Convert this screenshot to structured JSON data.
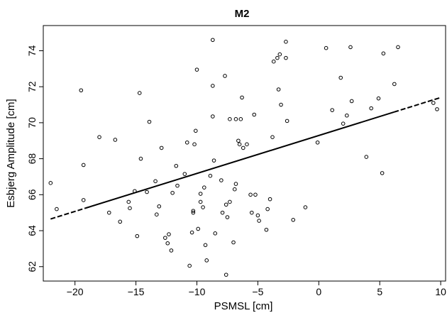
{
  "chart_data": {
    "type": "scatter",
    "title": "M2",
    "xlabel": "PSMSL [cm]",
    "ylabel": "Esbjerg Amplitude [cm]",
    "xlim": [
      -22.6,
      10.4
    ],
    "ylim": [
      61.2,
      75.4
    ],
    "x_ticks": [
      -20,
      -15,
      -10,
      -5,
      0,
      5,
      10
    ],
    "y_ticks": [
      62,
      64,
      66,
      68,
      70,
      72,
      74
    ],
    "x_tick_labels": [
      "−20",
      "−15",
      "−10",
      "−5",
      "0",
      "5",
      "10"
    ],
    "y_tick_labels": [
      "62",
      "64",
      "66",
      "68",
      "70",
      "72",
      "74"
    ],
    "grid": false,
    "legend": "none",
    "colors": {
      "points": "#000000",
      "fit_line": "#000000",
      "frame": "#000000"
    },
    "series": [
      {
        "points": [
          [
            -22.0,
            66.65
          ],
          [
            -21.5,
            65.2
          ],
          [
            -19.5,
            71.8
          ],
          [
            -19.3,
            67.65
          ],
          [
            -19.3,
            65.7
          ],
          [
            -18.0,
            69.2
          ],
          [
            -17.2,
            65.0
          ],
          [
            -16.7,
            69.05
          ],
          [
            -16.3,
            64.5
          ],
          [
            -15.6,
            65.6
          ],
          [
            -15.5,
            65.25
          ],
          [
            -15.1,
            66.2
          ],
          [
            -14.9,
            63.7
          ],
          [
            -14.7,
            71.65
          ],
          [
            -14.6,
            68.0
          ],
          [
            -14.1,
            66.15
          ],
          [
            -13.9,
            70.05
          ],
          [
            -13.4,
            66.75
          ],
          [
            -13.3,
            64.9
          ],
          [
            -13.1,
            65.35
          ],
          [
            -12.9,
            68.6
          ],
          [
            -12.6,
            63.6
          ],
          [
            -12.4,
            63.3
          ],
          [
            -12.3,
            63.8
          ],
          [
            -12.1,
            62.9
          ],
          [
            -12.0,
            66.1
          ],
          [
            -11.7,
            67.6
          ],
          [
            -11.6,
            66.5
          ],
          [
            -11.0,
            67.15
          ],
          [
            -10.8,
            68.9
          ],
          [
            -10.6,
            62.05
          ],
          [
            -10.4,
            63.9
          ],
          [
            -10.3,
            65.1
          ],
          [
            -10.3,
            65.0
          ],
          [
            -10.2,
            68.8
          ],
          [
            -10.1,
            69.55
          ],
          [
            -10.0,
            72.95
          ],
          [
            -9.9,
            64.1
          ],
          [
            -9.7,
            66.05
          ],
          [
            -9.7,
            65.6
          ],
          [
            -9.5,
            65.3
          ],
          [
            -9.4,
            66.4
          ],
          [
            -9.3,
            63.2
          ],
          [
            -9.2,
            62.35
          ],
          [
            -8.9,
            67.05
          ],
          [
            -8.7,
            72.05
          ],
          [
            -8.7,
            70.35
          ],
          [
            -8.7,
            74.6
          ],
          [
            -8.6,
            67.9
          ],
          [
            -8.5,
            63.85
          ],
          [
            -8.0,
            66.8
          ],
          [
            -7.9,
            65.0
          ],
          [
            -7.7,
            72.6
          ],
          [
            -7.6,
            65.45
          ],
          [
            -7.6,
            61.55
          ],
          [
            -7.5,
            64.75
          ],
          [
            -7.3,
            70.2
          ],
          [
            -7.3,
            65.6
          ],
          [
            -7.0,
            63.35
          ],
          [
            -6.9,
            66.3
          ],
          [
            -6.8,
            66.6
          ],
          [
            -6.8,
            70.2
          ],
          [
            -6.6,
            69.0
          ],
          [
            -6.5,
            68.8
          ],
          [
            -6.4,
            70.2
          ],
          [
            -6.3,
            71.4
          ],
          [
            -6.2,
            68.6
          ],
          [
            -5.9,
            68.8
          ],
          [
            -5.6,
            66.0
          ],
          [
            -5.5,
            65.0
          ],
          [
            -5.3,
            70.45
          ],
          [
            -5.2,
            66.0
          ],
          [
            -5.0,
            64.85
          ],
          [
            -4.9,
            64.55
          ],
          [
            -4.3,
            64.05
          ],
          [
            -4.2,
            65.2
          ],
          [
            -4.0,
            65.75
          ],
          [
            -3.8,
            69.2
          ],
          [
            -3.7,
            73.4
          ],
          [
            -3.4,
            73.6
          ],
          [
            -3.3,
            71.85
          ],
          [
            -3.2,
            73.8
          ],
          [
            -3.1,
            71.0
          ],
          [
            -2.7,
            73.6
          ],
          [
            -2.7,
            74.5
          ],
          [
            -2.6,
            70.1
          ],
          [
            -2.1,
            64.6
          ],
          [
            -1.1,
            65.3
          ],
          [
            -0.1,
            68.9
          ],
          [
            0.6,
            74.15
          ],
          [
            1.1,
            70.7
          ],
          [
            1.8,
            72.5
          ],
          [
            2.0,
            69.95
          ],
          [
            2.3,
            70.4
          ],
          [
            2.6,
            74.2
          ],
          [
            2.7,
            71.2
          ],
          [
            3.9,
            68.1
          ],
          [
            4.3,
            70.8
          ],
          [
            4.9,
            71.35
          ],
          [
            5.2,
            67.2
          ],
          [
            5.3,
            73.85
          ],
          [
            6.2,
            72.15
          ],
          [
            6.5,
            74.2
          ],
          [
            9.4,
            71.1
          ],
          [
            9.7,
            70.75
          ]
        ]
      }
    ],
    "fit_line": {
      "x": [
        -22.0,
        10.0
      ],
      "y": [
        64.65,
        71.4
      ],
      "style": "solid with dashed ends"
    }
  }
}
